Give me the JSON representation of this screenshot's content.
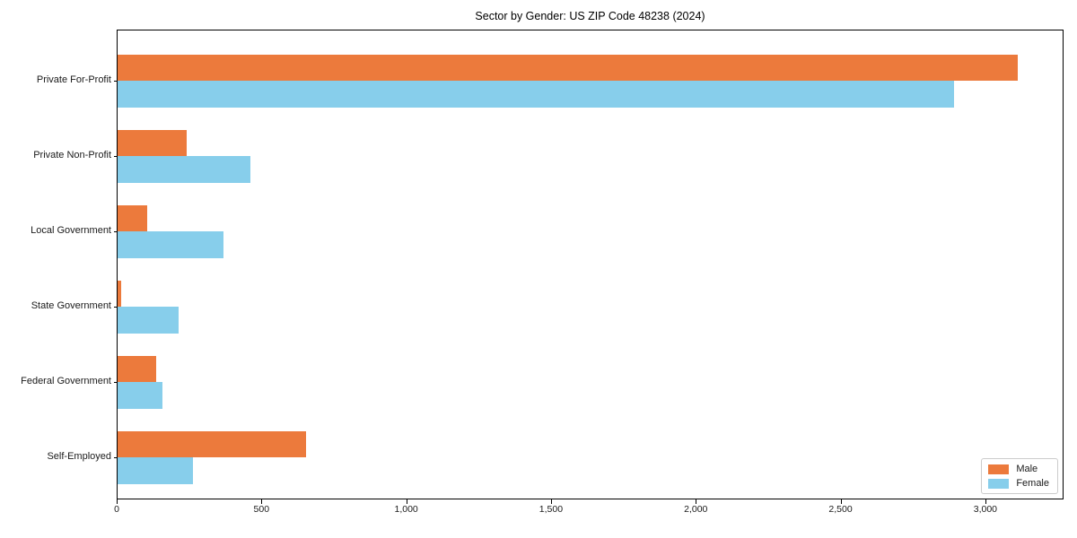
{
  "title": "Sector by Gender: US ZIP Code 48238 (2024)",
  "chart_data": {
    "type": "bar",
    "orientation": "horizontal",
    "title": "Sector by Gender: US ZIP Code 48238 (2024)",
    "categories": [
      "Private For-Profit",
      "Private Non-Profit",
      "Local Government",
      "State Government",
      "Federal Government",
      "Self-Employed"
    ],
    "series": [
      {
        "name": "Male",
        "color": "#ec7a3c",
        "values": [
          3110,
          240,
          103,
          12,
          134,
          650
        ]
      },
      {
        "name": "Female",
        "color": "#87ceeb",
        "values": [
          2890,
          460,
          365,
          210,
          155,
          260
        ]
      }
    ],
    "xlim": [
      0,
      3270
    ],
    "xticks": [
      0,
      500,
      1000,
      1500,
      2000,
      2500,
      3000
    ],
    "xtick_labels": [
      "0",
      "500",
      "1,000",
      "1,500",
      "2,000",
      "2,500",
      "3,000"
    ],
    "xlabel": "",
    "ylabel": "",
    "grid": false,
    "legend_position": "lower right",
    "legend_labels": [
      "Male",
      "Female"
    ]
  }
}
